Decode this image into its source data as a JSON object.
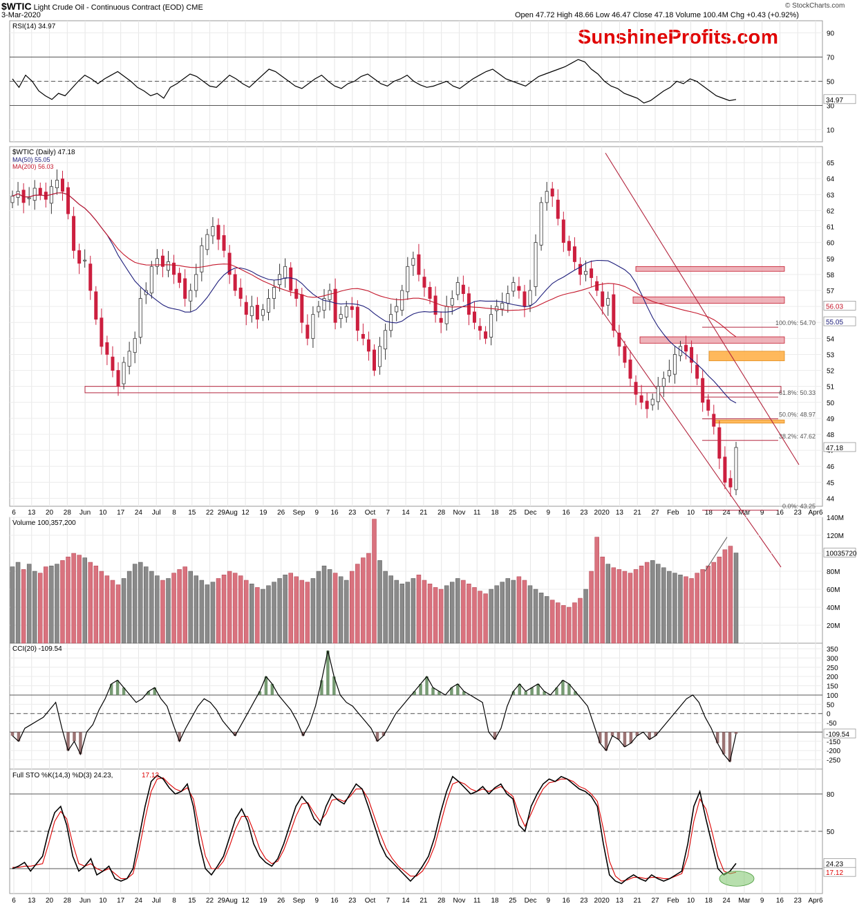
{
  "header": {
    "symbol": "$WTIC",
    "name": "Light Crude Oil - Continuous Contract (EOD)",
    "exchange": "CME",
    "date": "3-Mar-2020",
    "ohlc_text": "Open 47.72  High 48.66  Low 46.47  Close 47.18  Volume 100.4M  Chg +0.43 (+0.92%)",
    "copyright": "© StockCharts.com",
    "watermark": "SunshineProfits.com"
  },
  "colors": {
    "up": "#808080",
    "down": "#cc1f3f",
    "ma50": "#1c1c7a",
    "ma200": "#c4162a",
    "watermark": "#e00000",
    "fib": "#b3243d",
    "orange": "#ffb14a"
  },
  "x_axis_labels": [
    "6",
    "13",
    "20",
    "28",
    "Jun",
    "10",
    "17",
    "24",
    "Jul",
    "8",
    "15",
    "22",
    "29Aug",
    "12",
    "19",
    "26",
    "Sep",
    "9",
    "16",
    "23",
    "Oct",
    "7",
    "14",
    "21",
    "28",
    "Nov",
    "11",
    "18",
    "25",
    "Dec",
    "9",
    "16",
    "23",
    "2020",
    "13",
    "21",
    "27",
    "Feb",
    "10",
    "18",
    "24",
    "Mar",
    "9",
    "16",
    "23",
    "Apr6"
  ],
  "chart_data": [
    {
      "type": "line",
      "panel": "RSI",
      "title": "RSI(14) 34.97",
      "current": 34.97,
      "current_label": "34.97",
      "ylim": [
        0,
        100
      ],
      "yticks": [
        10,
        30,
        50,
        70,
        90
      ],
      "reference_lines": [
        30,
        50,
        70
      ],
      "values": [
        52,
        45,
        55,
        50,
        42,
        38,
        35,
        40,
        38,
        44,
        50,
        55,
        52,
        48,
        52,
        55,
        58,
        54,
        50,
        45,
        42,
        38,
        40,
        36,
        45,
        48,
        52,
        56,
        54,
        50,
        46,
        45,
        50,
        55,
        52,
        48,
        45,
        50,
        55,
        60,
        58,
        54,
        50,
        46,
        44,
        48,
        52,
        55,
        50,
        46,
        44,
        48,
        50,
        54,
        56,
        52,
        48,
        46,
        50,
        52,
        55,
        50,
        47,
        45,
        46,
        48,
        50,
        46,
        44,
        48,
        52,
        55,
        58,
        60,
        56,
        52,
        50,
        48,
        46,
        50,
        54,
        56,
        58,
        60,
        62,
        65,
        68,
        66,
        60,
        56,
        50,
        46,
        44,
        40,
        38,
        36,
        32,
        34,
        38,
        42,
        45,
        50,
        48,
        52,
        50,
        46,
        42,
        38,
        36,
        34,
        34.97
      ]
    },
    {
      "type": "candlestick",
      "panel": "Price",
      "title": "$WTIC (Daily) 47.18",
      "current_label": "47.18",
      "ylim": [
        43.5,
        66
      ],
      "yticks": [
        44,
        45,
        46,
        47,
        48,
        49,
        50,
        51,
        52,
        53,
        54,
        55,
        56,
        57,
        58,
        59,
        60,
        61,
        62,
        63,
        64,
        65
      ],
      "closes": [
        62.9,
        63.2,
        62.5,
        62.8,
        63.4,
        63.0,
        62.7,
        63.5,
        63.9,
        63.2,
        61.8,
        59.5,
        58.7,
        58.9,
        57.0,
        55.2,
        53.5,
        53.0,
        52.0,
        51.0,
        52.5,
        53.2,
        54.0,
        56.5,
        57.0,
        58.5,
        59.0,
        58.5,
        58.8,
        58.0,
        57.5,
        56.5,
        57.0,
        58.0,
        59.8,
        60.5,
        61.0,
        60.2,
        59.5,
        58.0,
        57.0,
        56.5,
        55.5,
        56.0,
        55.2,
        55.8,
        56.5,
        57.2,
        58.0,
        58.5,
        57.0,
        56.5,
        55.0,
        54.0,
        55.5,
        56.0,
        56.5,
        57.0,
        55.0,
        55.5,
        56.0,
        55.8,
        54.5,
        54.0,
        53.2,
        52.0,
        53.5,
        54.5,
        55.5,
        56.0,
        57.0,
        58.5,
        59.0,
        58.0,
        57.2,
        56.5,
        55.5,
        55.0,
        56.0,
        56.5,
        57.5,
        56.8,
        55.5,
        55.0,
        54.5,
        54.0,
        55.5,
        56.0,
        56.2,
        56.8,
        57.5,
        57.0,
        56.0,
        57.0,
        60.0,
        62.5,
        63.2,
        62.9,
        61.5,
        60.0,
        59.5,
        58.8,
        58.0,
        58.2,
        57.8,
        57.0,
        56.0,
        56.5,
        54.5,
        53.5,
        52.5,
        51.5,
        50.5,
        50.0,
        49.6,
        50.2,
        51.0,
        51.5,
        52.0,
        53.0,
        53.5,
        53.2,
        52.5,
        51.5,
        50.0,
        49.5,
        48.5,
        46.5,
        45.0,
        44.7,
        47.18
      ],
      "series": [
        {
          "name": "$WTIC (Daily) 47.18",
          "close": 47.18
        },
        {
          "name": "MA(50) 55.05",
          "current": 55.05,
          "color": "#1c1c7a"
        },
        {
          "name": "MA(200) 56.03",
          "current": 56.03,
          "color": "#c4162a"
        }
      ],
      "ma_labels": {
        "ma50": "55.05",
        "ma200": "56.03"
      },
      "fibonacci": [
        {
          "label": "100.0%: 54.70",
          "value": 54.7
        },
        {
          "label": "61.8%: 50.33",
          "value": 50.33
        },
        {
          "label": "50.0%: 48.97",
          "value": 48.97
        },
        {
          "label": "38.2%: 47.62",
          "value": 47.62
        },
        {
          "label": "0.0%: 43.25",
          "value": 43.25
        }
      ],
      "resistance_zones": [
        {
          "from": 58.2,
          "to": 58.5,
          "color": "red"
        },
        {
          "from": 56.2,
          "to": 56.6,
          "color": "red"
        },
        {
          "from": 53.7,
          "to": 54.1,
          "color": "red"
        },
        {
          "from": 52.6,
          "to": 53.2,
          "color": "orange"
        },
        {
          "from": 48.7,
          "to": 48.9,
          "color": "orange"
        }
      ],
      "support_line": {
        "from": 50.6,
        "to": 51.0
      }
    },
    {
      "type": "bar",
      "panel": "Volume",
      "title": "Volume 100,357,200",
      "current_label": "100357200",
      "ylim": [
        0,
        140
      ],
      "yticks_labels": [
        "20M",
        "40M",
        "60M",
        "80M",
        "100M",
        "120M",
        "140M"
      ],
      "yticks": [
        20,
        40,
        60,
        80,
        100,
        120,
        140
      ],
      "values_millions": [
        85,
        90,
        82,
        88,
        80,
        78,
        85,
        86,
        88,
        92,
        96,
        100,
        98,
        95,
        90,
        86,
        80,
        75,
        70,
        65,
        72,
        80,
        88,
        90,
        85,
        80,
        75,
        70,
        72,
        78,
        82,
        85,
        80,
        75,
        70,
        65,
        68,
        72,
        76,
        80,
        78,
        75,
        70,
        66,
        62,
        60,
        64,
        68,
        72,
        76,
        78,
        74,
        70,
        68,
        72,
        80,
        86,
        82,
        78,
        74,
        70,
        80,
        88,
        95,
        100,
        138,
        92,
        80,
        75,
        70,
        66,
        68,
        72,
        76,
        70,
        66,
        62,
        60,
        64,
        68,
        72,
        70,
        66,
        62,
        58,
        55,
        60,
        64,
        68,
        72,
        70,
        74,
        70,
        64,
        60,
        56,
        52,
        48,
        45,
        42,
        40,
        45,
        50,
        60,
        80,
        118,
        96,
        88,
        84,
        82,
        80,
        78,
        82,
        86,
        90,
        92,
        88,
        84,
        80,
        78,
        76,
        74,
        72,
        78,
        82,
        86,
        90,
        96,
        104,
        108,
        100.4
      ]
    },
    {
      "type": "line",
      "panel": "CCI",
      "title": "CCI(20) -109.54",
      "current": -109.54,
      "current_label": "-109.54",
      "ylim": [
        -300,
        380
      ],
      "yticks": [
        -250,
        -200,
        -150,
        -100,
        -50,
        0,
        50,
        100,
        150,
        200,
        250,
        300,
        350
      ],
      "reference_lines": [
        -100,
        0,
        100
      ],
      "values": [
        -120,
        -150,
        -80,
        -60,
        -40,
        -20,
        20,
        60,
        -80,
        -200,
        -150,
        -220,
        -100,
        -60,
        20,
        80,
        160,
        180,
        140,
        100,
        60,
        80,
        120,
        140,
        80,
        40,
        -60,
        -150,
        -80,
        -20,
        40,
        80,
        60,
        20,
        -40,
        -80,
        -120,
        -60,
        0,
        60,
        120,
        200,
        160,
        100,
        60,
        20,
        -40,
        -120,
        -60,
        40,
        180,
        340,
        200,
        100,
        60,
        40,
        0,
        -40,
        -80,
        -150,
        -120,
        -60,
        0,
        40,
        80,
        120,
        160,
        200,
        140,
        120,
        100,
        140,
        160,
        120,
        100,
        80,
        60,
        -100,
        -140,
        -80,
        40,
        120,
        160,
        120,
        140,
        160,
        120,
        100,
        140,
        180,
        160,
        120,
        80,
        40,
        -60,
        -160,
        -200,
        -120,
        -140,
        -180,
        -160,
        -120,
        -100,
        -140,
        -120,
        -80,
        -40,
        0,
        40,
        80,
        100,
        60,
        -20,
        -80,
        -160,
        -220,
        -260,
        -109.54
      ]
    },
    {
      "type": "line",
      "panel": "Full STO",
      "title": "Full STO %K(14,3) %D(3) 24.23, 17.12",
      "title_main": "Full STO %K(14,3) %D(3) 24.23,",
      "title_red": "17.12",
      "series": [
        {
          "name": "%K",
          "current": 24.23,
          "color": "#000000"
        },
        {
          "name": "%D",
          "current": 17.12,
          "color": "#dd0000"
        }
      ],
      "current_k_label": "24.23",
      "current_d_label": "17.12",
      "ylim": [
        0,
        100
      ],
      "yticks": [
        20,
        50,
        80
      ],
      "reference_lines": [
        20,
        50,
        80
      ],
      "k_values": [
        20,
        22,
        25,
        18,
        24,
        30,
        50,
        65,
        70,
        55,
        30,
        18,
        22,
        28,
        15,
        18,
        22,
        12,
        10,
        12,
        20,
        45,
        70,
        90,
        95,
        92,
        85,
        80,
        82,
        88,
        70,
        40,
        20,
        15,
        22,
        30,
        45,
        60,
        68,
        58,
        40,
        30,
        25,
        22,
        28,
        40,
        55,
        70,
        78,
        72,
        60,
        55,
        70,
        80,
        75,
        72,
        80,
        88,
        84,
        70,
        55,
        40,
        30,
        25,
        20,
        15,
        10,
        15,
        22,
        30,
        45,
        65,
        82,
        94,
        90,
        85,
        80,
        82,
        86,
        80,
        85,
        88,
        80,
        76,
        55,
        50,
        70,
        80,
        88,
        92,
        90,
        94,
        92,
        88,
        84,
        82,
        78,
        70,
        40,
        15,
        10,
        8,
        12,
        15,
        12,
        10,
        15,
        12,
        10,
        12,
        15,
        18,
        40,
        70,
        82,
        60,
        40,
        20,
        15,
        18,
        24.23
      ],
      "d_values": [
        21,
        21,
        22,
        22,
        23,
        24,
        40,
        58,
        66,
        60,
        40,
        24,
        22,
        24,
        20,
        18,
        20,
        16,
        12,
        12,
        16,
        35,
        60,
        82,
        92,
        93,
        88,
        84,
        82,
        85,
        76,
        52,
        30,
        20,
        20,
        26,
        38,
        52,
        62,
        62,
        50,
        36,
        28,
        24,
        26,
        35,
        48,
        62,
        72,
        73,
        65,
        58,
        64,
        75,
        76,
        74,
        78,
        84,
        84,
        76,
        62,
        48,
        36,
        28,
        22,
        18,
        14,
        14,
        18,
        26,
        38,
        56,
        74,
        88,
        90,
        88,
        84,
        82,
        84,
        82,
        84,
        86,
        82,
        78,
        64,
        54,
        64,
        75,
        84,
        89,
        90,
        92,
        92,
        90,
        86,
        84,
        80,
        74,
        52,
        26,
        14,
        10,
        11,
        13,
        13,
        12,
        13,
        13,
        12,
        12,
        14,
        16,
        30,
        58,
        76,
        68,
        50,
        30,
        18,
        16,
        17.12
      ]
    }
  ]
}
